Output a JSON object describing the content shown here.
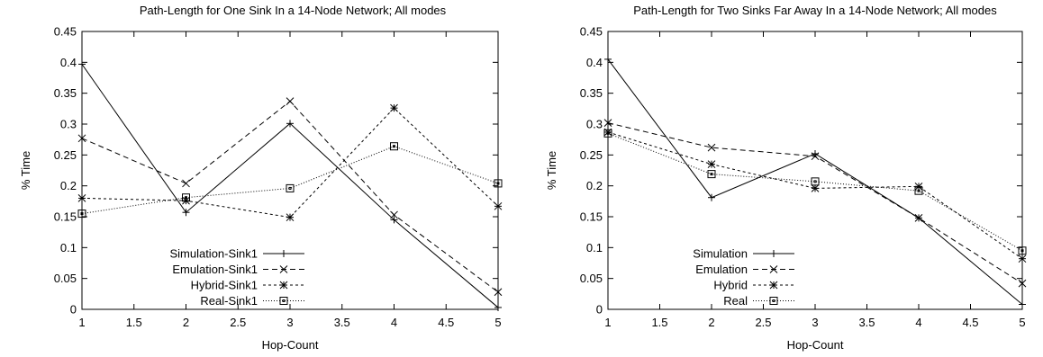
{
  "chart_data": [
    {
      "type": "line",
      "title": "Path-Length for One Sink In a 14-Node Network; All modes",
      "xlabel": "Hop-Count",
      "ylabel": "% Time",
      "xlim": [
        1,
        5
      ],
      "ylim": [
        0,
        0.45
      ],
      "x_ticks": [
        "1",
        "1.5",
        "2",
        "2.5",
        "3",
        "3.5",
        "4",
        "4.5",
        "5"
      ],
      "y_ticks": [
        "0",
        "0.05",
        "0.1",
        "0.15",
        "0.2",
        "0.25",
        "0.3",
        "0.35",
        "0.4",
        "0.45"
      ],
      "grid": false,
      "legend_position": "bottom-left",
      "x": [
        1,
        2,
        3,
        4,
        5
      ],
      "series": [
        {
          "name": "Simulation-Sink1",
          "marker": "plus",
          "dash": "",
          "values": [
            0.397,
            0.157,
            0.301,
            0.145,
            0.003
          ]
        },
        {
          "name": "Emulation-Sink1",
          "marker": "cross",
          "dash": "6,4",
          "values": [
            0.277,
            0.204,
            0.337,
            0.153,
            0.028
          ]
        },
        {
          "name": "Hybrid-Sink1",
          "marker": "star",
          "dash": "3,3",
          "values": [
            0.18,
            0.176,
            0.149,
            0.326,
            0.167
          ]
        },
        {
          "name": "Real-Sink1",
          "marker": "square",
          "dash": "1,2",
          "values": [
            0.155,
            0.181,
            0.196,
            0.264,
            0.204
          ]
        }
      ]
    },
    {
      "type": "line",
      "title": "Path-Length for Two Sinks Far Away In a 14-Node Network; All modes",
      "xlabel": "Hop-Count",
      "ylabel": "% Time",
      "xlim": [
        1,
        5
      ],
      "ylim": [
        0,
        0.45
      ],
      "x_ticks": [
        "1",
        "1.5",
        "2",
        "2.5",
        "3",
        "3.5",
        "4",
        "4.5",
        "5"
      ],
      "y_ticks": [
        "0",
        "0.05",
        "0.1",
        "0.15",
        "0.2",
        "0.25",
        "0.3",
        "0.35",
        "0.4",
        "0.45"
      ],
      "grid": false,
      "legend_position": "bottom-left",
      "x": [
        1,
        2,
        3,
        4,
        5
      ],
      "series": [
        {
          "name": "Simulation",
          "marker": "plus",
          "dash": "",
          "values": [
            0.405,
            0.181,
            0.252,
            0.148,
            0.008
          ]
        },
        {
          "name": "Emulation",
          "marker": "cross",
          "dash": "6,4",
          "values": [
            0.302,
            0.262,
            0.248,
            0.148,
            0.042
          ]
        },
        {
          "name": "Hybrid",
          "marker": "star",
          "dash": "3,3",
          "values": [
            0.287,
            0.235,
            0.196,
            0.199,
            0.082
          ]
        },
        {
          "name": "Real",
          "marker": "square",
          "dash": "1,2",
          "values": [
            0.285,
            0.219,
            0.207,
            0.192,
            0.095
          ]
        }
      ]
    }
  ]
}
